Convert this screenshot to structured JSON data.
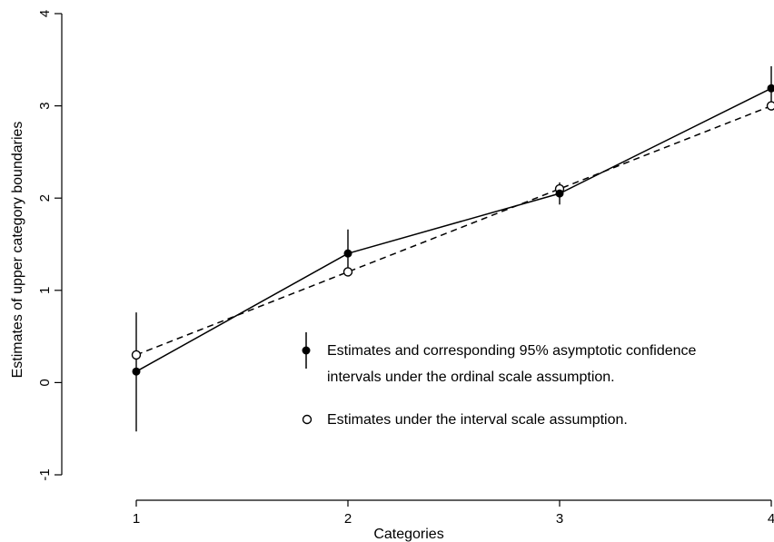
{
  "chart_data": {
    "type": "line",
    "xlabel": "Categories",
    "ylabel": "Estimates of upper category boundaries",
    "x_ticks": [
      "1",
      "2",
      "3",
      "4"
    ],
    "y_ticks": [
      "-1",
      "0",
      "1",
      "2",
      "3",
      "4"
    ],
    "xlim": [
      1,
      4
    ],
    "ylim": [
      -1,
      4
    ],
    "grid": false,
    "legend_position": "center-right",
    "series": [
      {
        "name": "Estimates and corresponding 95% asymptotic confidence intervals under the ordinal scale assumption.",
        "line_style": "solid",
        "marker": "filled-circle",
        "x": [
          1,
          2,
          3,
          4
        ],
        "y": [
          0.12,
          1.4,
          2.05,
          3.19
        ],
        "ci_low": [
          -0.53,
          1.15,
          1.93,
          2.95
        ],
        "ci_high": [
          0.76,
          1.66,
          2.17,
          3.43
        ]
      },
      {
        "name": "Estimates under the interval scale assumption.",
        "line_style": "dashed",
        "marker": "open-circle",
        "x": [
          1,
          2,
          3,
          4
        ],
        "y": [
          0.3,
          1.2,
          2.1,
          3.0
        ]
      }
    ],
    "legend": {
      "line1": "Estimates and corresponding 95% asymptotic confidence",
      "line2": "intervals under the ordinal scale assumption.",
      "line3": "Estimates under the interval scale assumption."
    },
    "colors": {
      "ink": "#000000",
      "background": "#ffffff"
    }
  }
}
